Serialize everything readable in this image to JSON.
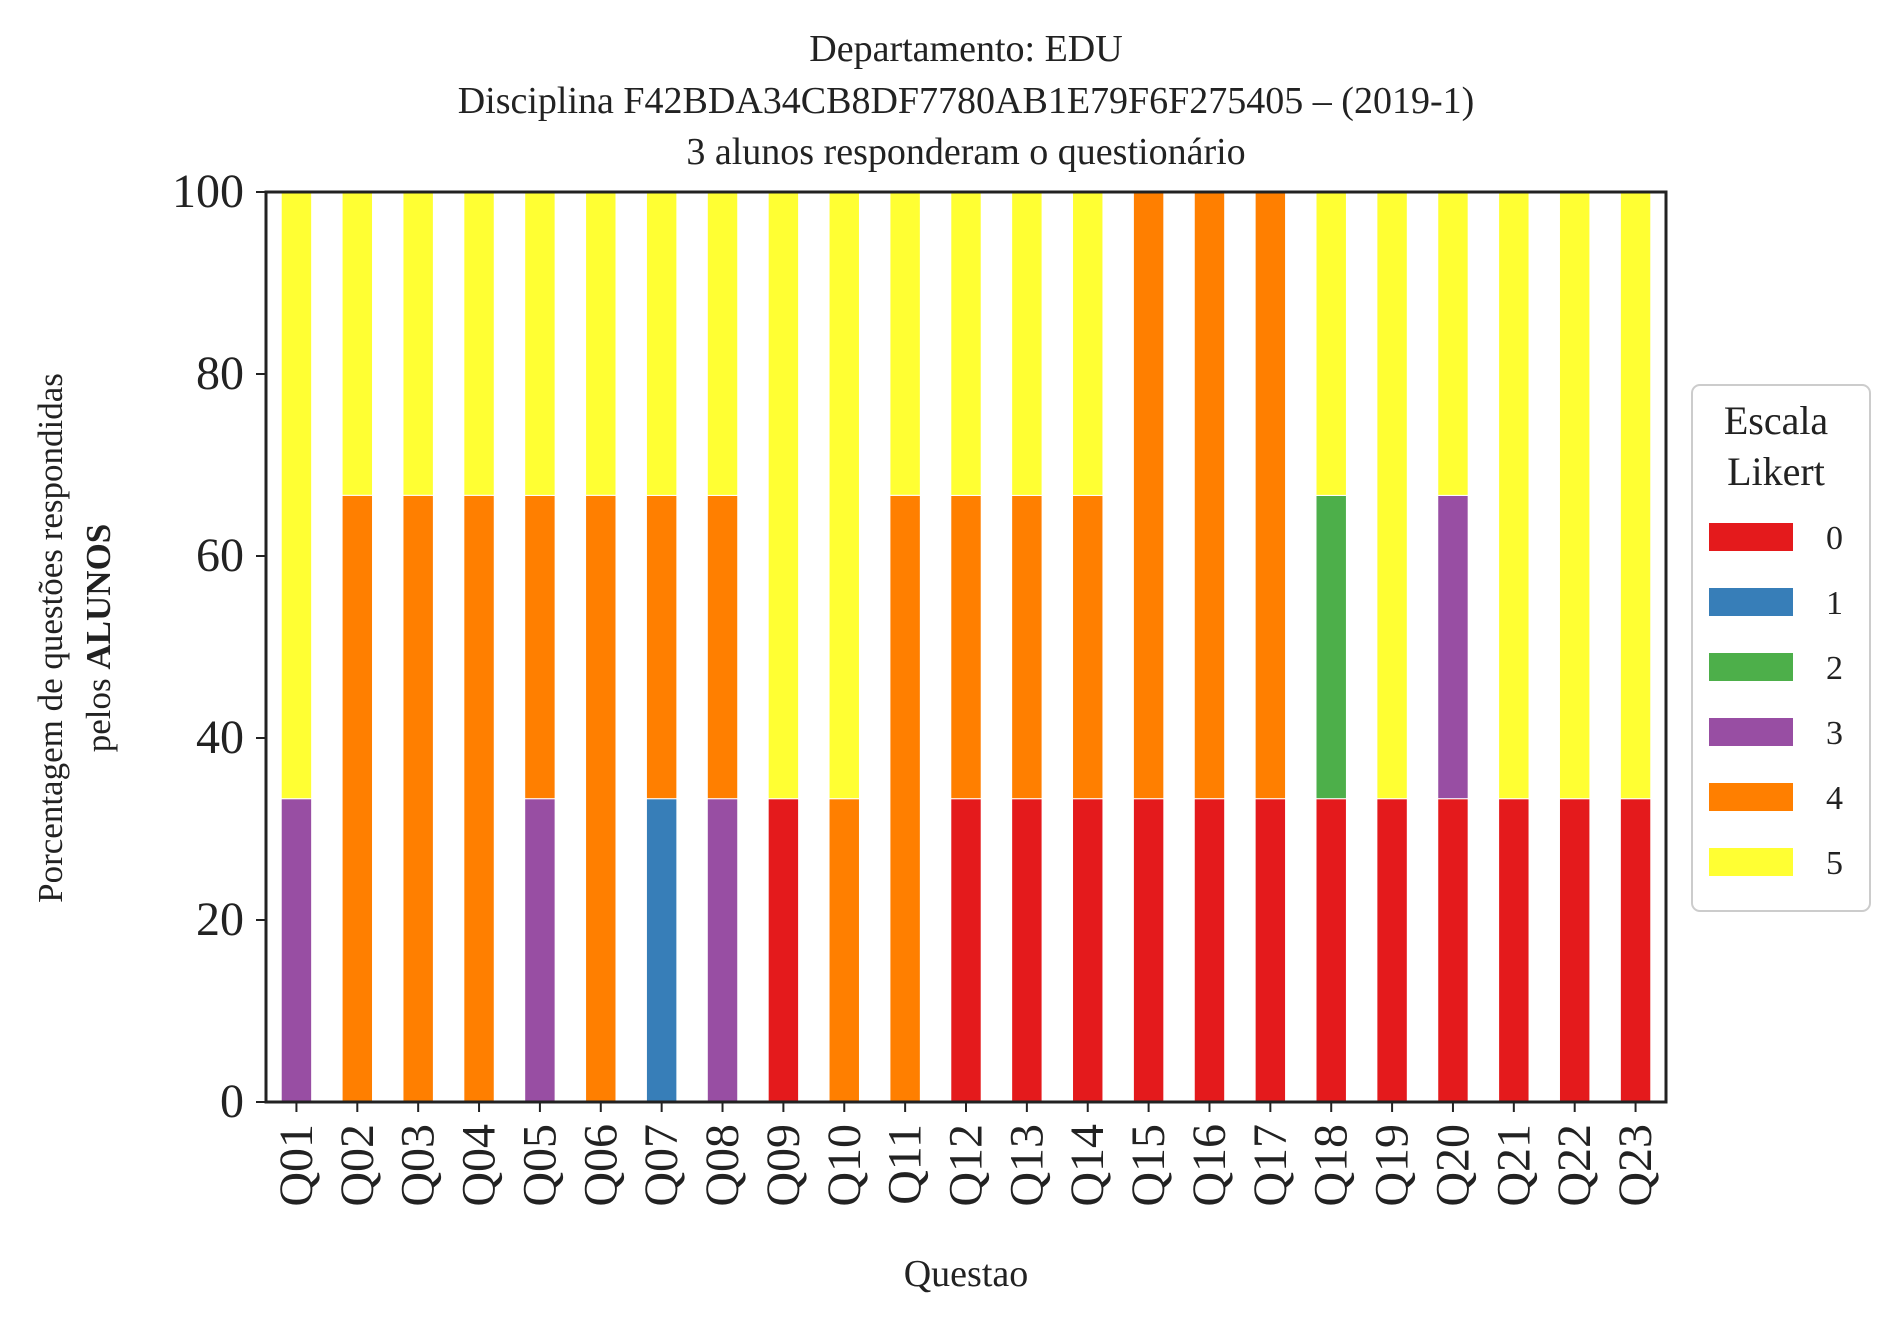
{
  "chart_data": {
    "type": "bar",
    "stacked": true,
    "title_lines": [
      "Departamento: EDU",
      "Disciplina F42BDA34CB8DF7780AB1E79F6F275405 – (2019-1)",
      "3 alunos responderam o questionário"
    ],
    "xlabel": "Questao",
    "ylabel_line1": "Porcentagem de questões respondidas",
    "ylabel_line2_prefix": "pelos ",
    "ylabel_line2_bold": "ALUNOS",
    "ylim": [
      0,
      100
    ],
    "yticks": [
      0,
      20,
      40,
      60,
      80,
      100
    ],
    "categories": [
      "Q01",
      "Q02",
      "Q03",
      "Q04",
      "Q05",
      "Q06",
      "Q07",
      "Q08",
      "Q09",
      "Q10",
      "Q11",
      "Q12",
      "Q13",
      "Q14",
      "Q15",
      "Q16",
      "Q17",
      "Q18",
      "Q19",
      "Q20",
      "Q21",
      "Q22",
      "Q23"
    ],
    "legend": {
      "title_lines": [
        "Escala",
        "Likert"
      ],
      "placement": "right-center"
    },
    "series": [
      {
        "name": "0",
        "color": "#e41a1c",
        "values": [
          0,
          0,
          0,
          0,
          0,
          0,
          0,
          0,
          33.33,
          0,
          0,
          33.33,
          33.33,
          33.33,
          33.33,
          33.33,
          33.33,
          33.33,
          33.33,
          33.33,
          33.33,
          33.33,
          33.33
        ]
      },
      {
        "name": "1",
        "color": "#377eb8",
        "values": [
          0,
          0,
          0,
          0,
          0,
          0,
          33.33,
          0,
          0,
          0,
          0,
          0,
          0,
          0,
          0,
          0,
          0,
          0,
          0,
          0,
          0,
          0,
          0
        ]
      },
      {
        "name": "2",
        "color": "#4daf4a",
        "values": [
          0,
          0,
          0,
          0,
          0,
          0,
          0,
          0,
          0,
          0,
          0,
          0,
          0,
          0,
          0,
          0,
          0,
          33.33,
          0,
          0,
          0,
          0,
          0
        ]
      },
      {
        "name": "3",
        "color": "#984ea3",
        "values": [
          33.33,
          0,
          0,
          0,
          33.33,
          0,
          0,
          33.33,
          0,
          0,
          0,
          0,
          0,
          0,
          0,
          0,
          0,
          0,
          0,
          33.33,
          0,
          0,
          0
        ]
      },
      {
        "name": "4",
        "color": "#ff7f00",
        "values": [
          0,
          66.67,
          66.67,
          66.67,
          33.33,
          66.67,
          33.33,
          33.33,
          0,
          33.33,
          66.67,
          33.33,
          33.33,
          33.33,
          66.67,
          66.67,
          66.67,
          0,
          0,
          0,
          0,
          0,
          0
        ]
      },
      {
        "name": "5",
        "color": "#ffff33",
        "values": [
          66.67,
          33.33,
          33.33,
          33.33,
          33.33,
          33.33,
          33.33,
          33.33,
          66.67,
          66.67,
          33.33,
          33.33,
          33.33,
          33.33,
          0,
          0,
          0,
          33.33,
          66.67,
          33.33,
          66.67,
          66.67,
          66.67
        ]
      }
    ]
  }
}
